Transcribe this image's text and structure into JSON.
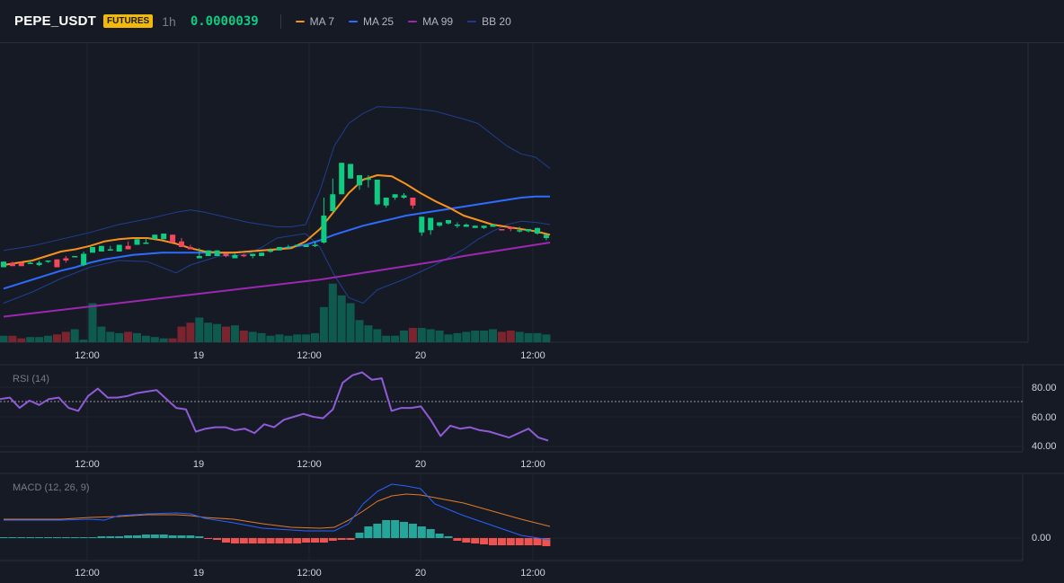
{
  "header": {
    "symbol": "PEPE_USDT",
    "badge": "FUTURES",
    "interval": "1h",
    "price": "0.0000039",
    "legend": [
      {
        "label": "MA 7",
        "color": "#f7931a"
      },
      {
        "label": "MA 25",
        "color": "#2f6bff"
      },
      {
        "label": "MA 99",
        "color": "#9c27b0"
      },
      {
        "label": "BB 20",
        "color": "#1e3a8a"
      }
    ]
  },
  "colors": {
    "up": "#0ecb81",
    "down": "#f6465d",
    "vol_up": "#0e5a4e",
    "vol_down": "#7a2430",
    "ma7": "#f7931a",
    "ma25": "#2f6bff",
    "ma99": "#9c27b0",
    "bb": "#1f3f8f",
    "rsi": "#8f5bd6",
    "macd": "#2962ff",
    "signal": "#e07a29",
    "hist_up": "#26a69a",
    "hist_down": "#ef5350"
  },
  "time_axis": [
    "12:00",
    "19",
    "12:00",
    "20",
    "12:00"
  ],
  "rsi": {
    "title": "RSI (14)",
    "levels": [
      "80.00",
      "60.00",
      "40.00"
    ],
    "values": [
      72,
      73,
      66,
      71,
      68,
      72,
      73,
      66,
      64,
      74,
      79,
      73,
      73,
      74,
      76,
      77,
      78,
      72,
      66,
      65,
      50,
      52,
      53,
      53,
      51,
      52,
      49,
      55,
      53,
      58,
      60,
      62,
      60,
      59,
      65,
      83,
      88,
      90,
      85,
      86,
      64,
      66,
      66,
      67,
      58,
      47,
      54,
      52,
      53,
      51,
      50,
      48,
      46,
      49,
      52,
      46,
      44
    ]
  },
  "macd": {
    "title": "MACD (12, 26, 9)",
    "level": "0.00"
  },
  "chart_data": {
    "type": "candlestick",
    "candles": [
      [
        7,
        2,
        2,
        7
      ],
      [
        7,
        6,
        4,
        3
      ],
      [
        7,
        6,
        5,
        3
      ],
      [
        8,
        5,
        5,
        6
      ],
      [
        8,
        4,
        3,
        6
      ],
      [
        8,
        7,
        6,
        8
      ],
      [
        8,
        9,
        4,
        2
      ],
      [
        12,
        10,
        6,
        8
      ],
      [
        12,
        11,
        11,
        12
      ],
      [
        16,
        4,
        3,
        14
      ],
      [
        17,
        15,
        15,
        20
      ],
      [
        20,
        16,
        16,
        21
      ],
      [
        21,
        17,
        19,
        18
      ],
      [
        22,
        16,
        16,
        22
      ],
      [
        25,
        21,
        20,
        18
      ],
      [
        24,
        22,
        22,
        27
      ],
      [
        28,
        24,
        23,
        24
      ],
      [
        30,
        27,
        27,
        31
      ],
      [
        31,
        27,
        28,
        32
      ],
      [
        28,
        31,
        26,
        24
      ],
      [
        28,
        25,
        24,
        20
      ],
      [
        22,
        20,
        20,
        18
      ],
      [
        19,
        10,
        12,
        12
      ],
      [
        15,
        12,
        12,
        17
      ],
      [
        14,
        12,
        12,
        17
      ],
      [
        14,
        14,
        11,
        12
      ],
      [
        14,
        10,
        13,
        13
      ],
      [
        14,
        13,
        11,
        12
      ],
      [
        14,
        12,
        10,
        14
      ],
      [
        14,
        12,
        13,
        15
      ],
      [
        19,
        16,
        15,
        17
      ],
      [
        20,
        17,
        17,
        20
      ],
      [
        22,
        20,
        20,
        20
      ],
      [
        21,
        21,
        21,
        22
      ],
      [
        22,
        20,
        20,
        22
      ],
      [
        25,
        21,
        20,
        22
      ],
      [
        64,
        24,
        23,
        48
      ],
      [
        81,
        52,
        51,
        67
      ],
      [
        90,
        67,
        67,
        95
      ],
      [
        90,
        81,
        81,
        94
      ],
      [
        81,
        75,
        71,
        84
      ],
      [
        84,
        81,
        73,
        81
      ],
      [
        75,
        58,
        57,
        80
      ],
      [
        61,
        57,
        55,
        64
      ],
      [
        67,
        64,
        62,
        67
      ],
      [
        68,
        64,
        63,
        66
      ],
      [
        56,
        64,
        54,
        57
      ],
      [
        47,
        33,
        30,
        47
      ],
      [
        45,
        35,
        31,
        46
      ],
      [
        41,
        39,
        38,
        42
      ],
      [
        42,
        41,
        40,
        44
      ],
      [
        42,
        39,
        37,
        40
      ],
      [
        41,
        38,
        38,
        40
      ],
      [
        39,
        37,
        37,
        39
      ],
      [
        39,
        37,
        36,
        39
      ],
      [
        40,
        38,
        38,
        40
      ],
      [
        33,
        36,
        35,
        35
      ],
      [
        35,
        38,
        34,
        36
      ],
      [
        38,
        34,
        33,
        35
      ],
      [
        36,
        34,
        33,
        36
      ],
      [
        35,
        32,
        31,
        37
      ],
      [
        31,
        28,
        26,
        31
      ]
    ],
    "volume": [
      5,
      5,
      3,
      4,
      4,
      5,
      6,
      8,
      10,
      2,
      30,
      12,
      8,
      7,
      8,
      7,
      5,
      4,
      3,
      3,
      12,
      15,
      19,
      15,
      14,
      12,
      13,
      9,
      8,
      7,
      5,
      6,
      5,
      6,
      6,
      7,
      27,
      45,
      36,
      30,
      17,
      13,
      10,
      5,
      5,
      9,
      11,
      11,
      10,
      9,
      6,
      7,
      8,
      9,
      9,
      10,
      8,
      9,
      8,
      7,
      7,
      6
    ],
    "ma7": [
      [
        0,
        4
      ],
      [
        8,
        6
      ],
      [
        16,
        8
      ],
      [
        24,
        12
      ],
      [
        32,
        16
      ],
      [
        40,
        18
      ],
      [
        48,
        21
      ],
      [
        56,
        25
      ],
      [
        64,
        27
      ],
      [
        72,
        28
      ],
      [
        80,
        28
      ],
      [
        88,
        26
      ],
      [
        96,
        23
      ],
      [
        104,
        19
      ],
      [
        112,
        16
      ],
      [
        120,
        15
      ],
      [
        128,
        15
      ],
      [
        136,
        16
      ],
      [
        144,
        17
      ],
      [
        152,
        18
      ],
      [
        160,
        19
      ],
      [
        168,
        25
      ],
      [
        176,
        36
      ],
      [
        184,
        52
      ],
      [
        192,
        68
      ],
      [
        200,
        80
      ],
      [
        208,
        84
      ],
      [
        216,
        83
      ],
      [
        224,
        76
      ],
      [
        232,
        68
      ],
      [
        240,
        61
      ],
      [
        248,
        55
      ],
      [
        256,
        48
      ],
      [
        264,
        44
      ],
      [
        272,
        40
      ],
      [
        280,
        38
      ],
      [
        288,
        36
      ],
      [
        296,
        34
      ],
      [
        304,
        31
      ]
    ],
    "ma25": [
      [
        0,
        -17
      ],
      [
        8,
        -13
      ],
      [
        16,
        -9
      ],
      [
        24,
        -5
      ],
      [
        32,
        -1
      ],
      [
        40,
        2
      ],
      [
        48,
        6
      ],
      [
        56,
        9
      ],
      [
        64,
        11
      ],
      [
        72,
        13
      ],
      [
        80,
        14
      ],
      [
        88,
        15
      ],
      [
        96,
        15
      ],
      [
        104,
        15
      ],
      [
        112,
        15
      ],
      [
        120,
        15
      ],
      [
        128,
        15
      ],
      [
        136,
        16
      ],
      [
        144,
        17
      ],
      [
        152,
        18
      ],
      [
        160,
        20
      ],
      [
        168,
        22
      ],
      [
        176,
        26
      ],
      [
        184,
        31
      ],
      [
        192,
        35
      ],
      [
        200,
        39
      ],
      [
        208,
        42
      ],
      [
        216,
        45
      ],
      [
        224,
        48
      ],
      [
        232,
        50
      ],
      [
        240,
        52
      ],
      [
        248,
        54
      ],
      [
        256,
        56
      ],
      [
        264,
        58
      ],
      [
        272,
        60
      ],
      [
        280,
        62
      ],
      [
        288,
        64
      ],
      [
        296,
        65
      ],
      [
        304,
        65
      ]
    ],
    "ma99": [
      [
        0,
        -42
      ],
      [
        16,
        -39
      ],
      [
        32,
        -36
      ],
      [
        48,
        -33
      ],
      [
        64,
        -30
      ],
      [
        80,
        -27
      ],
      [
        96,
        -24
      ],
      [
        112,
        -21
      ],
      [
        128,
        -18
      ],
      [
        144,
        -15
      ],
      [
        160,
        -12
      ],
      [
        176,
        -9
      ],
      [
        192,
        -5
      ],
      [
        208,
        -1
      ],
      [
        224,
        3
      ],
      [
        240,
        7
      ],
      [
        256,
        12
      ],
      [
        272,
        16
      ],
      [
        288,
        20
      ],
      [
        304,
        24
      ]
    ],
    "bb_upper": [
      [
        0,
        17
      ],
      [
        16,
        21
      ],
      [
        32,
        27
      ],
      [
        48,
        33
      ],
      [
        64,
        40
      ],
      [
        80,
        45
      ],
      [
        96,
        51
      ],
      [
        104,
        53
      ],
      [
        112,
        51
      ],
      [
        120,
        48
      ],
      [
        128,
        45
      ],
      [
        136,
        42
      ],
      [
        144,
        40
      ],
      [
        152,
        38
      ],
      [
        160,
        38
      ],
      [
        168,
        40
      ],
      [
        176,
        70
      ],
      [
        184,
        110
      ],
      [
        192,
        130
      ],
      [
        200,
        139
      ],
      [
        208,
        145
      ],
      [
        224,
        144
      ],
      [
        240,
        141
      ],
      [
        256,
        134
      ],
      [
        264,
        130
      ],
      [
        272,
        120
      ],
      [
        280,
        110
      ],
      [
        288,
        103
      ],
      [
        296,
        100
      ],
      [
        304,
        90
      ]
    ],
    "bb_lower": [
      [
        0,
        -30
      ],
      [
        16,
        -20
      ],
      [
        32,
        -8
      ],
      [
        48,
        2
      ],
      [
        64,
        8
      ],
      [
        80,
        7
      ],
      [
        96,
        -3
      ],
      [
        104,
        4
      ],
      [
        112,
        8
      ],
      [
        120,
        12
      ],
      [
        128,
        12
      ],
      [
        136,
        14
      ],
      [
        144,
        20
      ],
      [
        152,
        28
      ],
      [
        160,
        30
      ],
      [
        168,
        32
      ],
      [
        176,
        20
      ],
      [
        184,
        -5
      ],
      [
        192,
        -25
      ],
      [
        200,
        -30
      ],
      [
        208,
        -18
      ],
      [
        224,
        -8
      ],
      [
        240,
        4
      ],
      [
        256,
        18
      ],
      [
        264,
        27
      ],
      [
        272,
        34
      ],
      [
        280,
        40
      ],
      [
        288,
        43
      ],
      [
        296,
        42
      ],
      [
        304,
        40
      ]
    ],
    "macd_line": [
      [
        0,
        20
      ],
      [
        32,
        20
      ],
      [
        48,
        21
      ],
      [
        56,
        20
      ],
      [
        64,
        25
      ],
      [
        80,
        27
      ],
      [
        96,
        28
      ],
      [
        104,
        27
      ],
      [
        112,
        22
      ],
      [
        128,
        17
      ],
      [
        144,
        11
      ],
      [
        160,
        9
      ],
      [
        168,
        8
      ],
      [
        184,
        8
      ],
      [
        192,
        16
      ],
      [
        200,
        38
      ],
      [
        208,
        52
      ],
      [
        216,
        60
      ],
      [
        224,
        58
      ],
      [
        232,
        55
      ],
      [
        240,
        38
      ],
      [
        256,
        25
      ],
      [
        272,
        14
      ],
      [
        288,
        3
      ],
      [
        304,
        -2
      ]
    ],
    "signal_line": [
      [
        0,
        21
      ],
      [
        32,
        21
      ],
      [
        48,
        23
      ],
      [
        64,
        24
      ],
      [
        80,
        26
      ],
      [
        96,
        26
      ],
      [
        104,
        25
      ],
      [
        112,
        23
      ],
      [
        128,
        21
      ],
      [
        144,
        16
      ],
      [
        160,
        12
      ],
      [
        176,
        11
      ],
      [
        184,
        12
      ],
      [
        192,
        20
      ],
      [
        200,
        30
      ],
      [
        208,
        41
      ],
      [
        216,
        47
      ],
      [
        224,
        49
      ],
      [
        232,
        48
      ],
      [
        240,
        45
      ],
      [
        256,
        39
      ],
      [
        272,
        30
      ],
      [
        288,
        21
      ],
      [
        304,
        13
      ]
    ],
    "macd_hist": [
      1,
      1,
      1,
      1,
      1,
      1,
      1,
      1,
      1,
      1,
      1,
      2,
      2,
      2,
      3,
      3,
      4,
      4,
      4,
      3,
      3,
      3,
      2,
      -1,
      -2,
      -5,
      -6,
      -6,
      -6,
      -6,
      -6,
      -6,
      -6,
      -6,
      -5,
      -5,
      -5,
      -3,
      -2,
      -2,
      6,
      13,
      16,
      20,
      20,
      18,
      16,
      13,
      10,
      5,
      2,
      -3,
      -5,
      -6,
      -7,
      -8,
      -8,
      -8,
      -8,
      -8,
      -8,
      -9
    ]
  }
}
